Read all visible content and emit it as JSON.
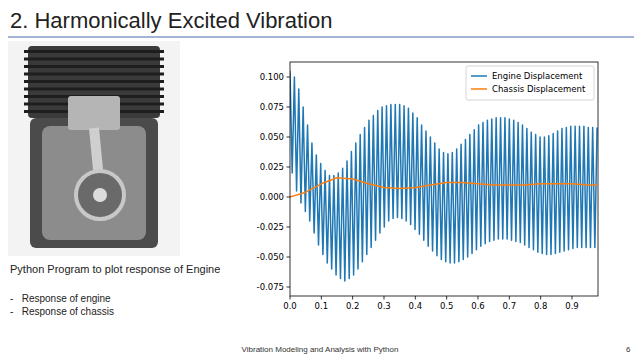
{
  "slide": {
    "title": "2. Harmonically Excited Vibration",
    "caption": "Python Program to plot response of Engine",
    "bullets": [
      "-   Response of engine",
      "-   Response of chassis"
    ],
    "footer": "Vibration Modeling and Analysis with Python",
    "page": 6
  },
  "chart_data": {
    "type": "line",
    "series": [
      {
        "name": "Engine Displacement",
        "color": "#1f77b4",
        "x": [
          0,
          0.007,
          0.014,
          0.021,
          0.028,
          0.035,
          0.042,
          0.049,
          0.056,
          0.063,
          0.07,
          0.077,
          0.084,
          0.091,
          0.098,
          0.105,
          0.112,
          0.119,
          0.126,
          0.133,
          0.14,
          0.147,
          0.154,
          0.161,
          0.168,
          0.175,
          0.182,
          0.189,
          0.196,
          0.203,
          0.21,
          0.217,
          0.224,
          0.231,
          0.238,
          0.245,
          0.252,
          0.259,
          0.266,
          0.273,
          0.28,
          0.287,
          0.294,
          0.301,
          0.308,
          0.315,
          0.322,
          0.329,
          0.336,
          0.343,
          0.35,
          0.357,
          0.364,
          0.371,
          0.378,
          0.385,
          0.392,
          0.399,
          0.406,
          0.413,
          0.42,
          0.427,
          0.434,
          0.441,
          0.448,
          0.455,
          0.462,
          0.469,
          0.476,
          0.483,
          0.49,
          0.497,
          0.504,
          0.511,
          0.518,
          0.525,
          0.532,
          0.539,
          0.546,
          0.553,
          0.56,
          0.567,
          0.574,
          0.581,
          0.588,
          0.595,
          0.602,
          0.609,
          0.616,
          0.623,
          0.63,
          0.637,
          0.644,
          0.651,
          0.658,
          0.665,
          0.672,
          0.679,
          0.686,
          0.693,
          0.7,
          0.707,
          0.714,
          0.721,
          0.728,
          0.735,
          0.742,
          0.749,
          0.756,
          0.763,
          0.77,
          0.777,
          0.784,
          0.791,
          0.798,
          0.805,
          0.812,
          0.819,
          0.826,
          0.833,
          0.84,
          0.847,
          0.854,
          0.861,
          0.868,
          0.875,
          0.882,
          0.889,
          0.896,
          0.903,
          0.91,
          0.917,
          0.924,
          0.931,
          0.938,
          0.945,
          0.952,
          0.959,
          0.966,
          0.973,
          0.98
        ],
        "values": [
          0.105,
          0.02,
          0.1,
          0.005,
          0.09,
          -0.005,
          0.075,
          -0.012,
          0.06,
          -0.02,
          0.045,
          -0.03,
          0.035,
          -0.04,
          0.028,
          -0.048,
          0.022,
          -0.055,
          0.018,
          -0.06,
          0.018,
          -0.065,
          0.02,
          -0.068,
          0.024,
          -0.07,
          0.03,
          -0.068,
          0.038,
          -0.065,
          0.045,
          -0.06,
          0.052,
          -0.054,
          0.058,
          -0.048,
          0.064,
          -0.042,
          0.068,
          -0.036,
          0.072,
          -0.03,
          0.075,
          -0.025,
          0.076,
          -0.02,
          0.077,
          -0.018,
          0.077,
          -0.017,
          0.077,
          -0.018,
          0.076,
          -0.02,
          0.074,
          -0.023,
          0.07,
          -0.027,
          0.066,
          -0.031,
          0.06,
          -0.036,
          0.055,
          -0.041,
          0.05,
          -0.045,
          0.045,
          -0.049,
          0.04,
          -0.052,
          0.037,
          -0.054,
          0.036,
          -0.055,
          0.037,
          -0.055,
          0.04,
          -0.054,
          0.044,
          -0.052,
          0.048,
          -0.05,
          0.052,
          -0.047,
          0.056,
          -0.044,
          0.06,
          -0.041,
          0.062,
          -0.039,
          0.064,
          -0.037,
          0.065,
          -0.036,
          0.066,
          -0.035,
          0.066,
          -0.035,
          0.066,
          -0.035,
          0.065,
          -0.036,
          0.064,
          -0.037,
          0.062,
          -0.038,
          0.06,
          -0.04,
          0.057,
          -0.042,
          0.054,
          -0.044,
          0.052,
          -0.046,
          0.05,
          -0.047,
          0.05,
          -0.048,
          0.051,
          -0.048,
          0.053,
          -0.047,
          0.055,
          -0.046,
          0.057,
          -0.045,
          0.058,
          -0.044,
          0.059,
          -0.043,
          0.059,
          -0.042,
          0.059,
          -0.042,
          0.059,
          -0.042,
          0.058,
          -0.042,
          0.058,
          -0.042,
          0.058
        ]
      },
      {
        "name": "Chassis Displacement",
        "color": "#ff7f0e",
        "x": [
          0,
          0.05,
          0.1,
          0.15,
          0.2,
          0.25,
          0.3,
          0.35,
          0.4,
          0.45,
          0.5,
          0.55,
          0.6,
          0.65,
          0.7,
          0.75,
          0.8,
          0.85,
          0.9,
          0.95,
          0.98
        ],
        "values": [
          0,
          0.004,
          0.011,
          0.016,
          0.015,
          0.011,
          0.008,
          0.007,
          0.008,
          0.01,
          0.012,
          0.012,
          0.011,
          0.01,
          0.01,
          0.01,
          0.011,
          0.011,
          0.011,
          0.01,
          0.01
        ]
      }
    ],
    "xlim": [
      0,
      0.983
    ],
    "xticks": [
      {
        "value": 0,
        "label": "0.0"
      },
      {
        "value": 0.1,
        "label": "0.1"
      },
      {
        "value": 0.2,
        "label": "0.2"
      },
      {
        "value": 0.3,
        "label": "0.3"
      },
      {
        "value": 0.4,
        "label": "0.4"
      },
      {
        "value": 0.5,
        "label": "0.5"
      },
      {
        "value": 0.6,
        "label": "0.6"
      },
      {
        "value": 0.7,
        "label": "0.7"
      },
      {
        "value": 0.8,
        "label": "0.8"
      },
      {
        "value": 0.9,
        "label": "0.9"
      }
    ],
    "ylim": [
      -0.0825,
      0.1125
    ],
    "yticks": [
      {
        "value": -0.075,
        "label": "-0.075"
      },
      {
        "value": -0.05,
        "label": "-0.050"
      },
      {
        "value": -0.025,
        "label": "-0.025"
      },
      {
        "value": 0,
        "label": "0.000"
      },
      {
        "value": 0.025,
        "label": "0.025"
      },
      {
        "value": 0.05,
        "label": "0.050"
      },
      {
        "value": 0.075,
        "label": "0.075"
      },
      {
        "value": 0.1,
        "label": "0.100"
      }
    ],
    "grid": false,
    "legend": "upper-right"
  }
}
